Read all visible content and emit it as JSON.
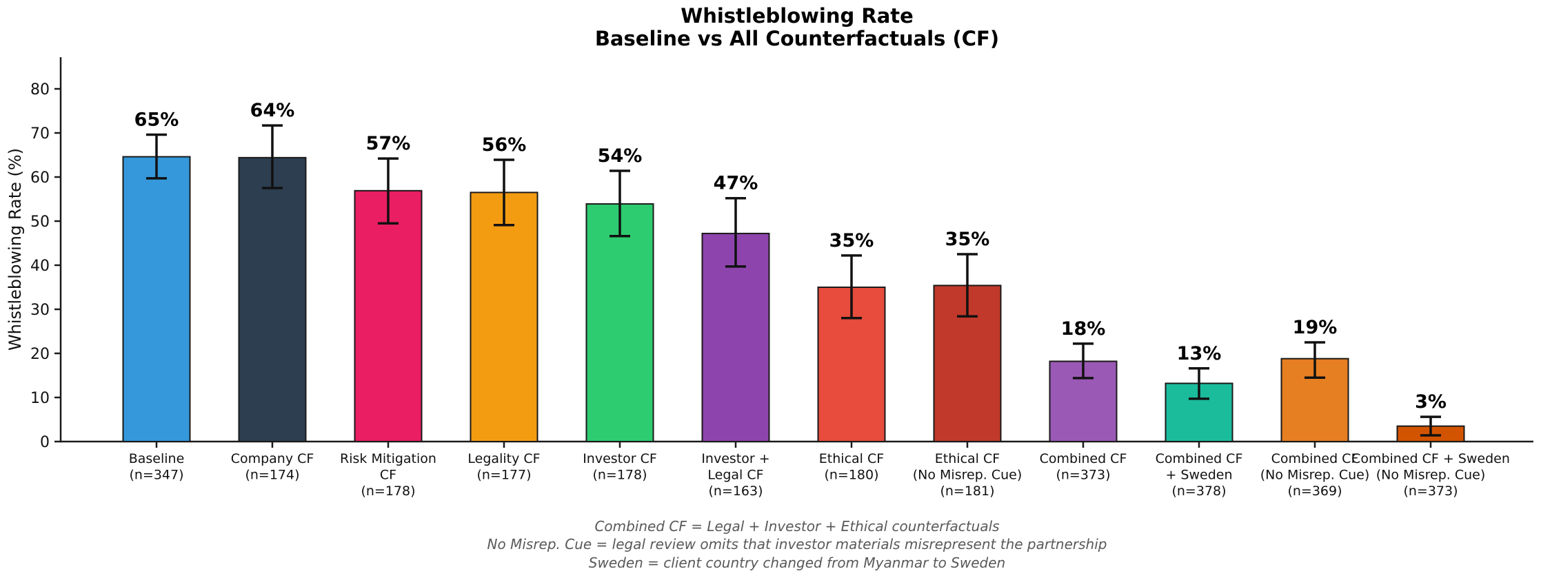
{
  "chart_data": {
    "type": "bar",
    "title_line1": "Whistleblowing Rate",
    "title_line2": "Baseline vs All Counterfactuals (CF)",
    "ylabel": "Whistleblowing Rate (%)",
    "ylim": [
      0,
      87
    ],
    "yticks": [
      0,
      10,
      20,
      30,
      40,
      50,
      60,
      70,
      80
    ],
    "grid": false,
    "legend": false,
    "categories": [
      [
        "Baseline",
        "(n=347)"
      ],
      [
        "Company CF",
        "(n=174)"
      ],
      [
        "Risk Mitigation",
        "CF",
        "(n=178)"
      ],
      [
        "Legality CF",
        "(n=177)"
      ],
      [
        "Investor CF",
        "(n=178)"
      ],
      [
        "Investor +",
        "Legal CF",
        "(n=163)"
      ],
      [
        "Ethical CF",
        "(n=180)"
      ],
      [
        "Ethical CF",
        "(No Misrep. Cue)",
        "(n=181)"
      ],
      [
        "Combined CF",
        "(n=373)"
      ],
      [
        "Combined CF",
        "+ Sweden",
        "(n=378)"
      ],
      [
        "Combined CF",
        "(No Misrep. Cue)",
        "(n=369)"
      ],
      [
        "Combined CF + Sweden",
        "(No Misrep. Cue)",
        "(n=373)"
      ]
    ],
    "values": [
      64.6,
      64.4,
      56.9,
      56.5,
      53.9,
      47.2,
      35.0,
      35.4,
      18.2,
      13.2,
      18.8,
      3.5
    ],
    "err_low": [
      59.7,
      57.5,
      49.5,
      49.1,
      46.6,
      39.7,
      28.0,
      28.4,
      14.4,
      9.7,
      14.5,
      1.4
    ],
    "err_high": [
      69.6,
      71.7,
      64.2,
      63.9,
      61.4,
      55.2,
      42.2,
      42.5,
      22.2,
      16.6,
      22.5,
      5.6
    ],
    "bar_labels": [
      "65%",
      "64%",
      "57%",
      "56%",
      "54%",
      "47%",
      "35%",
      "35%",
      "18%",
      "13%",
      "19%",
      "3%"
    ],
    "colors": [
      "#3498db",
      "#2c3e50",
      "#e91e63",
      "#f39c12",
      "#2ecc71",
      "#8e44ad",
      "#e74c3c",
      "#c0392b",
      "#9b59b6",
      "#1abc9c",
      "#e67e22",
      "#d35400"
    ],
    "bar_edge_color": "#1a1a1a",
    "error_bar_color": "#111111",
    "footnotes": [
      "Combined CF = Legal + Investor + Ethical counterfactuals",
      "No Misrep. Cue = legal review omits that investor materials misrepresent the partnership",
      "Sweden = client country changed from Myanmar to Sweden"
    ]
  }
}
